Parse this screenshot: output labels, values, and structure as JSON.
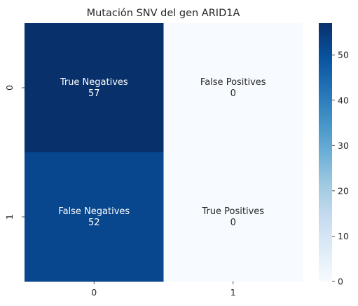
{
  "chart_data": {
    "type": "heatmap",
    "title": "Mutación SNV del gen ARID1A",
    "x_categories": [
      "0",
      "1"
    ],
    "y_categories": [
      "0",
      "1"
    ],
    "values": [
      [
        57,
        0
      ],
      [
        52,
        0
      ]
    ],
    "cell_labels": [
      [
        "True Negatives",
        "False Positives"
      ],
      [
        "False Negatives",
        "True Positives"
      ]
    ],
    "colorbar": {
      "min": 0,
      "max": 57,
      "ticks": [
        0,
        10,
        20,
        30,
        40,
        50
      ],
      "colormap": "Blues",
      "low_color": "#f7fbff",
      "high_color": "#08306b"
    },
    "xlabel": "",
    "ylabel": ""
  }
}
